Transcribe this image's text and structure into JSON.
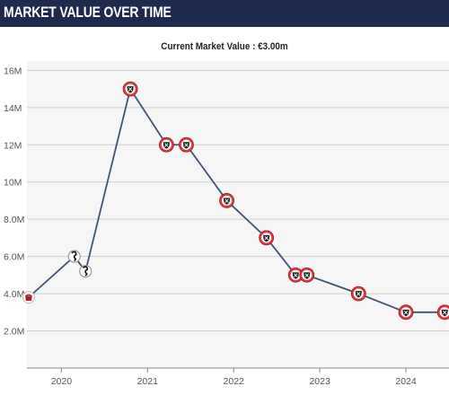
{
  "header": {
    "title": "MARKET VALUE OVER TIME"
  },
  "subtitle": "Current Market Value : €3.00m",
  "colors": {
    "header_bg": "#1d2a4d",
    "line": "#3f5577",
    "plot_bg": "#f6f6f6",
    "grid": "#cfcfcf",
    "marker_red": "#e2383f"
  },
  "chart_data": {
    "type": "line",
    "title": "Current Market Value : €3.00m",
    "xlabel": "",
    "ylabel": "",
    "x_tick_labels": [
      "2020",
      "2021",
      "2022",
      "2023",
      "2024"
    ],
    "x_tick_values": [
      2020.0,
      2021.0,
      2022.0,
      2023.0,
      2024.0
    ],
    "xlim": [
      2019.6,
      2024.5
    ],
    "y_tick_labels": [
      "2.0M",
      "4.0M",
      "6.0M",
      "8.0M",
      "10M",
      "12M",
      "14M",
      "16M"
    ],
    "y_tick_values": [
      2,
      4,
      6,
      8,
      10,
      12,
      14,
      16
    ],
    "ylim": [
      0,
      16.5
    ],
    "y_unit": "€ millions",
    "grid": true,
    "legend": "none",
    "points": [
      {
        "x": 2019.62,
        "y": 3.8,
        "club": "liverpool-crest-icon"
      },
      {
        "x": 2020.15,
        "y": 6.0,
        "club": "swansea-crest-icon"
      },
      {
        "x": 2020.28,
        "y": 5.2,
        "club": "swansea-crest-icon"
      },
      {
        "x": 2020.8,
        "y": 15.0,
        "club": "sheffield-united-crest-icon"
      },
      {
        "x": 2021.22,
        "y": 12.0,
        "club": "sheffield-united-crest-icon"
      },
      {
        "x": 2021.45,
        "y": 12.0,
        "club": "sheffield-united-crest-icon"
      },
      {
        "x": 2021.92,
        "y": 9.0,
        "club": "sheffield-united-crest-icon"
      },
      {
        "x": 2022.38,
        "y": 7.0,
        "club": "sheffield-united-crest-icon"
      },
      {
        "x": 2022.72,
        "y": 5.0,
        "club": "sheffield-united-crest-icon"
      },
      {
        "x": 2022.85,
        "y": 5.0,
        "club": "sheffield-united-crest-icon"
      },
      {
        "x": 2023.45,
        "y": 4.0,
        "club": "sheffield-united-crest-icon"
      },
      {
        "x": 2024.0,
        "y": 3.0,
        "club": "sheffield-united-crest-icon"
      },
      {
        "x": 2024.45,
        "y": 3.0,
        "club": "sheffield-united-crest-icon"
      }
    ]
  }
}
